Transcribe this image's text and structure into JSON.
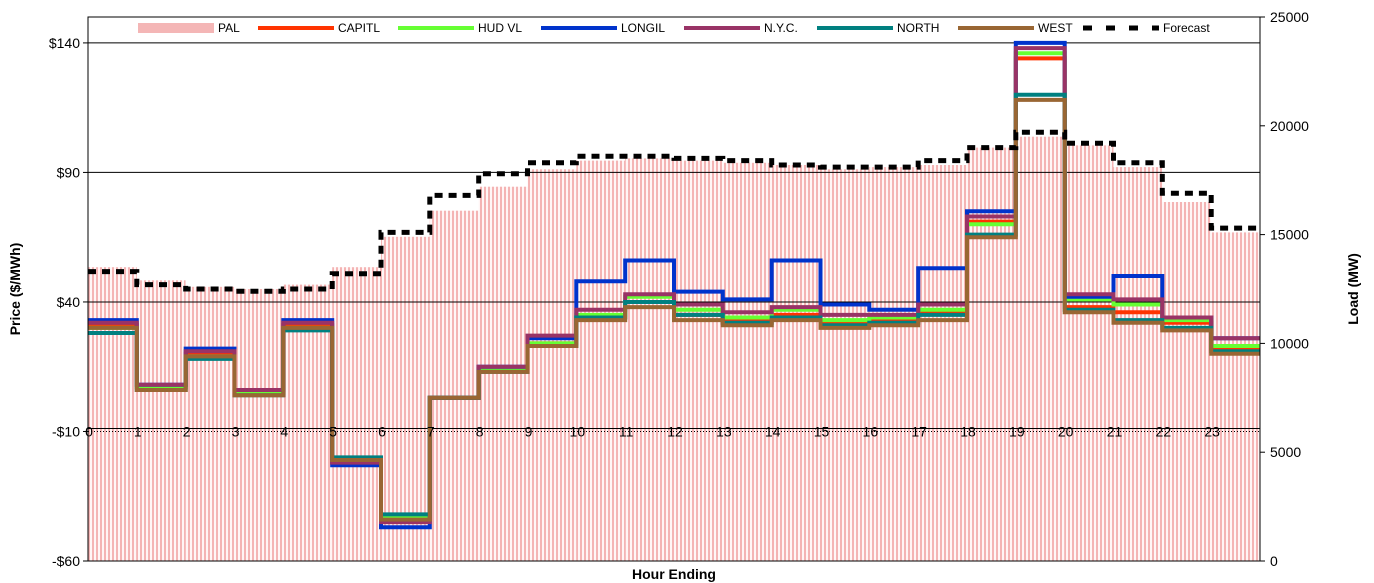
{
  "chart_data": {
    "type": "line",
    "title": "",
    "xlabel": "Hour Ending",
    "ylabel": "Price ($/MWh)",
    "y2label": "Load (MW)",
    "ylim": [
      -60,
      150
    ],
    "y2lim": [
      0,
      25000
    ],
    "xlim": [
      0,
      24
    ],
    "x_tick_labels": [
      "0",
      "1",
      "2",
      "3",
      "4",
      "5",
      "6",
      "7",
      "8",
      "9",
      "10",
      "11",
      "12",
      "13",
      "14",
      "15",
      "16",
      "17",
      "18",
      "19",
      "20",
      "21",
      "22",
      "23"
    ],
    "y_tick_labels": [
      {
        "value": -60,
        "label": "-$60"
      },
      {
        "value": -10,
        "label": "-$10"
      },
      {
        "value": 40,
        "label": "$40"
      },
      {
        "value": 90,
        "label": "$90"
      },
      {
        "value": 140,
        "label": "$140"
      }
    ],
    "y2_tick_labels": [
      {
        "value": 0,
        "label": "0"
      },
      {
        "value": 5000,
        "label": "5000"
      },
      {
        "value": 10000,
        "label": "10000"
      },
      {
        "value": 15000,
        "label": "15000"
      },
      {
        "value": 20000,
        "label": "20000"
      },
      {
        "value": 25000,
        "label": "25000"
      }
    ],
    "gridlines_y": [
      -60,
      40,
      90,
      140
    ],
    "legend_placement": "top",
    "hours": [
      0,
      1,
      2,
      3,
      4,
      5,
      6,
      7,
      8,
      9,
      10,
      11,
      12,
      13,
      14,
      15,
      16,
      17,
      18,
      19,
      20,
      21,
      22,
      23
    ],
    "load_series": {
      "name": "PAL",
      "axis": "right",
      "color": "#f4b6b6",
      "values": [
        13500,
        12900,
        12600,
        12500,
        12700,
        13500,
        14900,
        16100,
        17200,
        18000,
        18400,
        18500,
        18400,
        18300,
        18200,
        18000,
        18100,
        18200,
        19000,
        19500,
        19100,
        18100,
        16500,
        15100
      ]
    },
    "forecast_series": {
      "name": "Forecast",
      "axis": "right",
      "color": "#000000",
      "values": [
        13300,
        12700,
        12500,
        12400,
        12500,
        13200,
        15100,
        16800,
        17800,
        18300,
        18600,
        18600,
        18500,
        18400,
        18200,
        18100,
        18100,
        18400,
        19000,
        19700,
        19200,
        18300,
        16900,
        15300
      ]
    },
    "series": [
      {
        "name": "CAPITL",
        "color": "#ff3300",
        "values": [
          31,
          7,
          20,
          5,
          31,
          -22,
          -44,
          3,
          14,
          24,
          34,
          40,
          35,
          33,
          35,
          32,
          33,
          36,
          71,
          134,
          38,
          36,
          32,
          22
        ]
      },
      {
        "name": "HUD VL",
        "color": "#66ff33",
        "values": [
          30,
          7,
          19,
          5,
          30,
          -21,
          -43,
          3,
          14,
          24,
          35,
          42,
          37,
          34,
          37,
          33,
          34,
          37,
          70,
          136,
          41,
          39,
          33,
          23
        ]
      },
      {
        "name": "LONGIL",
        "color": "#0033cc",
        "values": [
          33,
          8,
          22,
          6,
          33,
          -23,
          -47,
          3,
          15,
          26,
          48,
          56,
          44,
          41,
          56,
          39,
          37,
          53,
          75,
          140,
          42,
          50,
          34,
          26
        ]
      },
      {
        "name": "N.Y.C.",
        "color": "#993366",
        "values": [
          32,
          8,
          21,
          6,
          32,
          -22,
          -45,
          3,
          15,
          27,
          37,
          43,
          39,
          36,
          38,
          35,
          35,
          39,
          73,
          138,
          43,
          41,
          34,
          26
        ]
      },
      {
        "name": "NORTH",
        "color": "#008080",
        "values": [
          28,
          6,
          18,
          4,
          29,
          -20,
          -42,
          3,
          13,
          23,
          34,
          40,
          35,
          32,
          34,
          31,
          32,
          35,
          66,
          120,
          37,
          33,
          30,
          21
        ]
      },
      {
        "name": "WEST",
        "color": "#996633",
        "values": [
          30,
          6,
          19,
          4,
          30,
          -21,
          -44,
          3,
          13,
          23,
          33,
          38,
          33,
          31,
          33,
          30,
          31,
          33,
          65,
          118,
          36,
          32,
          29,
          20
        ]
      }
    ],
    "legend": [
      {
        "name": "PAL",
        "style": "bar",
        "color": "#f4b6b6"
      },
      {
        "name": "CAPITL",
        "style": "line",
        "color": "#ff3300"
      },
      {
        "name": "HUD VL",
        "style": "line",
        "color": "#66ff33"
      },
      {
        "name": "LONGIL",
        "style": "line",
        "color": "#0033cc"
      },
      {
        "name": "N.Y.C.",
        "style": "line",
        "color": "#993366"
      },
      {
        "name": "NORTH",
        "style": "line",
        "color": "#008080"
      },
      {
        "name": "WEST",
        "style": "line",
        "color": "#996633"
      },
      {
        "name": "Forecast",
        "style": "dashed",
        "color": "#000000"
      }
    ]
  }
}
